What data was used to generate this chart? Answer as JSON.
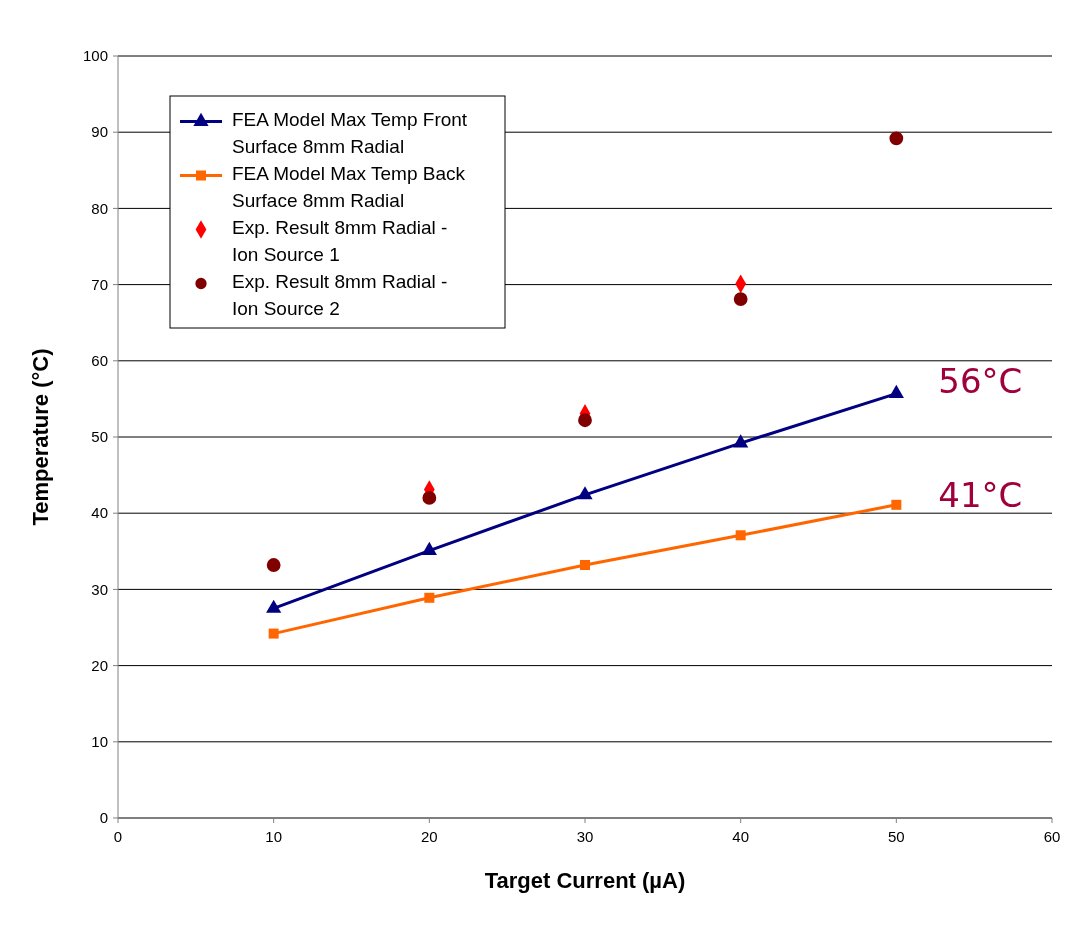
{
  "chart_data": {
    "type": "line",
    "xlabel": "Target Current (µA)",
    "ylabel": "Temperature (°C)",
    "xlim": [
      0,
      60
    ],
    "xticks": [
      0,
      10,
      20,
      30,
      40,
      50,
      60
    ],
    "ylim": [
      0,
      100
    ],
    "yticks": [
      0,
      10,
      20,
      30,
      40,
      50,
      60,
      70,
      80,
      90,
      100
    ],
    "grid": "y",
    "legend": "top left",
    "series": [
      {
        "name": "FEA Model Max Temp Front Surface 8mm Radial",
        "marker": "triangle",
        "color": "#000080",
        "x": [
          10,
          20,
          30,
          40,
          50
        ],
        "values": [
          27.5,
          35.1,
          42.4,
          49.2,
          55.7
        ]
      },
      {
        "name": "FEA Model Max Temp Back Surface 8mm Radial",
        "marker": "square",
        "color": "#ff6600",
        "x": [
          10,
          20,
          30,
          40,
          50
        ],
        "values": [
          24.2,
          28.9,
          33.2,
          37.1,
          41.1
        ]
      },
      {
        "name": "Exp. Result 8mm Radial - Ion Source 1",
        "type": "scatter",
        "marker": "diamond",
        "color": "#ff0000",
        "x": [
          20,
          30,
          40
        ],
        "values": [
          43.1,
          53.1,
          70.1
        ]
      },
      {
        "name": "Exp. Result 8mm Radial - Ion Source 2",
        "type": "scatter",
        "marker": "circle",
        "color": "#800000",
        "x": [
          10,
          20,
          30,
          40,
          50
        ],
        "values": [
          33.2,
          42,
          52.2,
          68.1,
          89.2
        ]
      }
    ],
    "annotations": [
      {
        "text": "56°C",
        "x": 50,
        "y": 56
      },
      {
        "text": "41°C",
        "x": 50,
        "y": 41
      }
    ]
  }
}
